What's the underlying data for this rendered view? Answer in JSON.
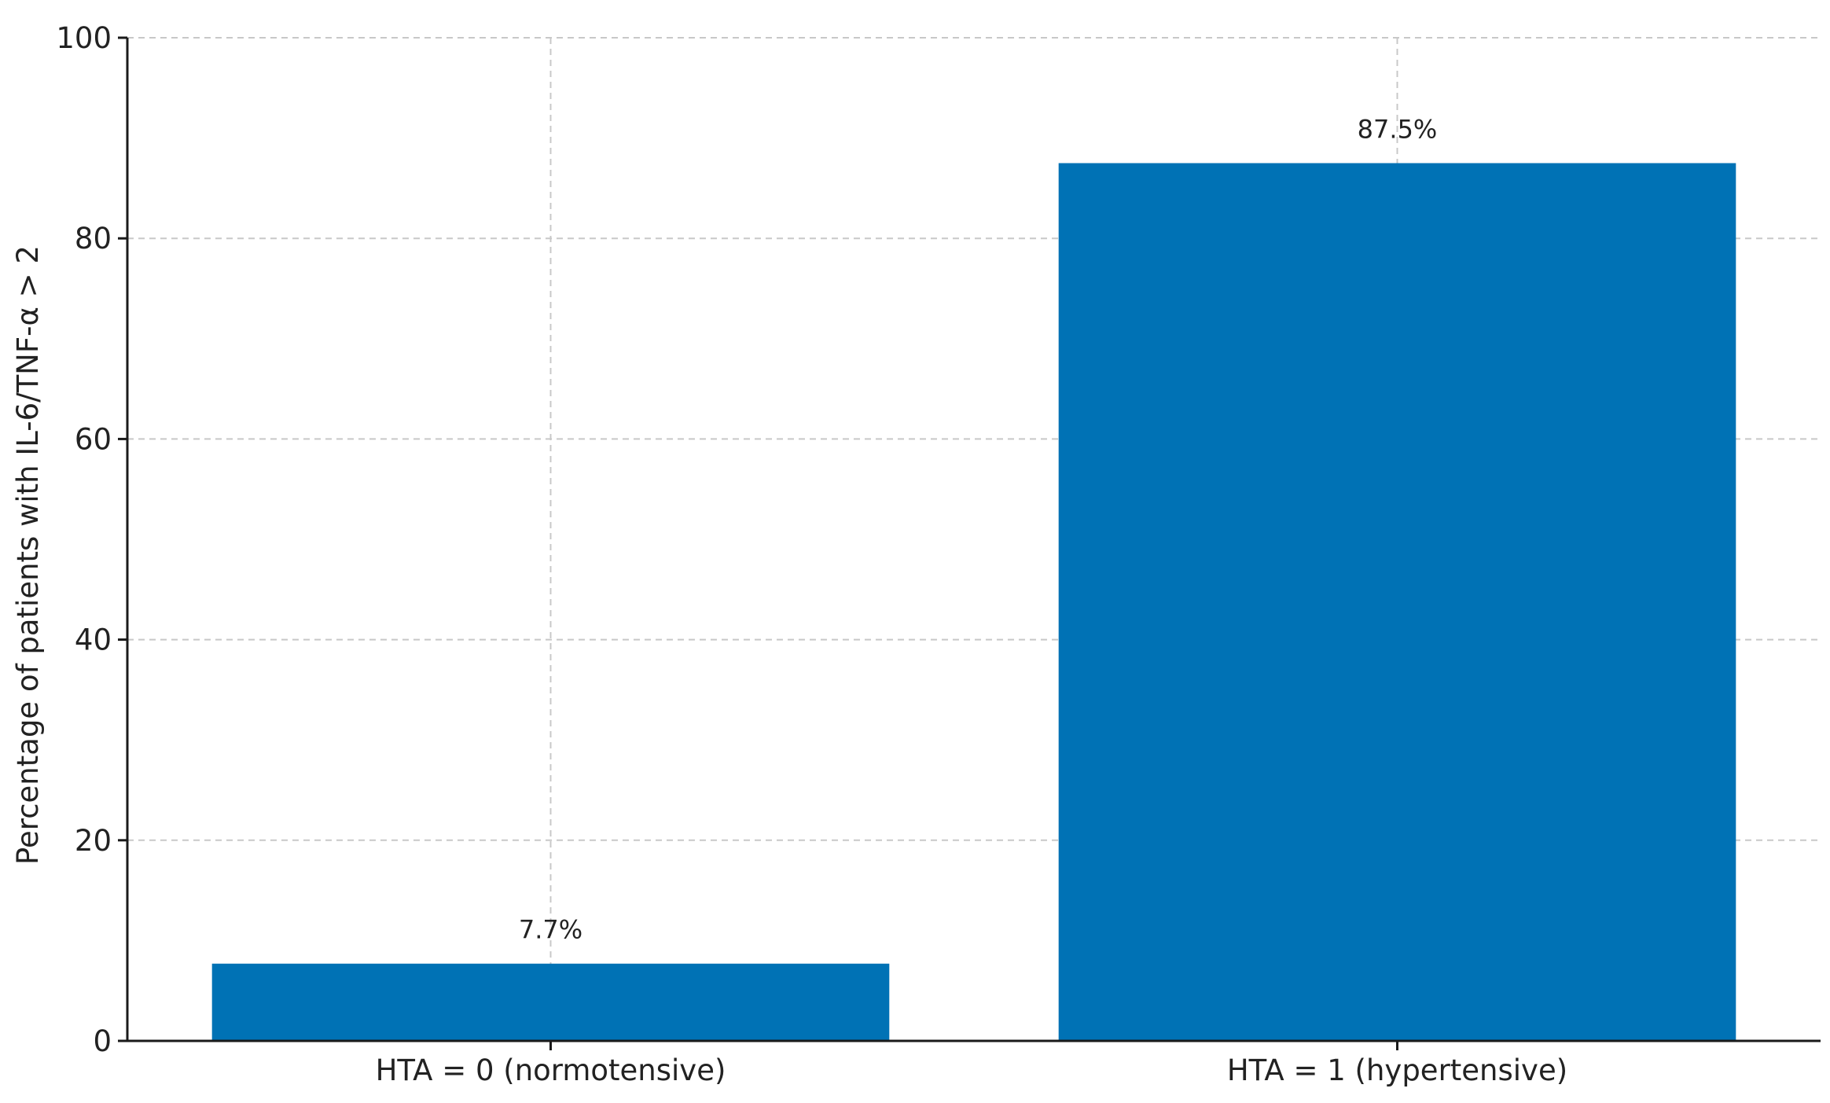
{
  "chart_data": {
    "type": "bar",
    "categories": [
      "HTA = 0 (normotensive)",
      "HTA = 1 (hypertensive)"
    ],
    "values": [
      7.7,
      87.5
    ],
    "data_labels": [
      "7.7%",
      "87.5%"
    ],
    "title": "",
    "xlabel": "",
    "ylabel": "Percentage of patients with IL-6/TNF-α > 2",
    "ylim": [
      0,
      100
    ],
    "yticks": [
      0,
      20,
      40,
      60,
      80,
      100
    ],
    "grid": true,
    "legend": "none",
    "bar_color": "#0072b5"
  }
}
